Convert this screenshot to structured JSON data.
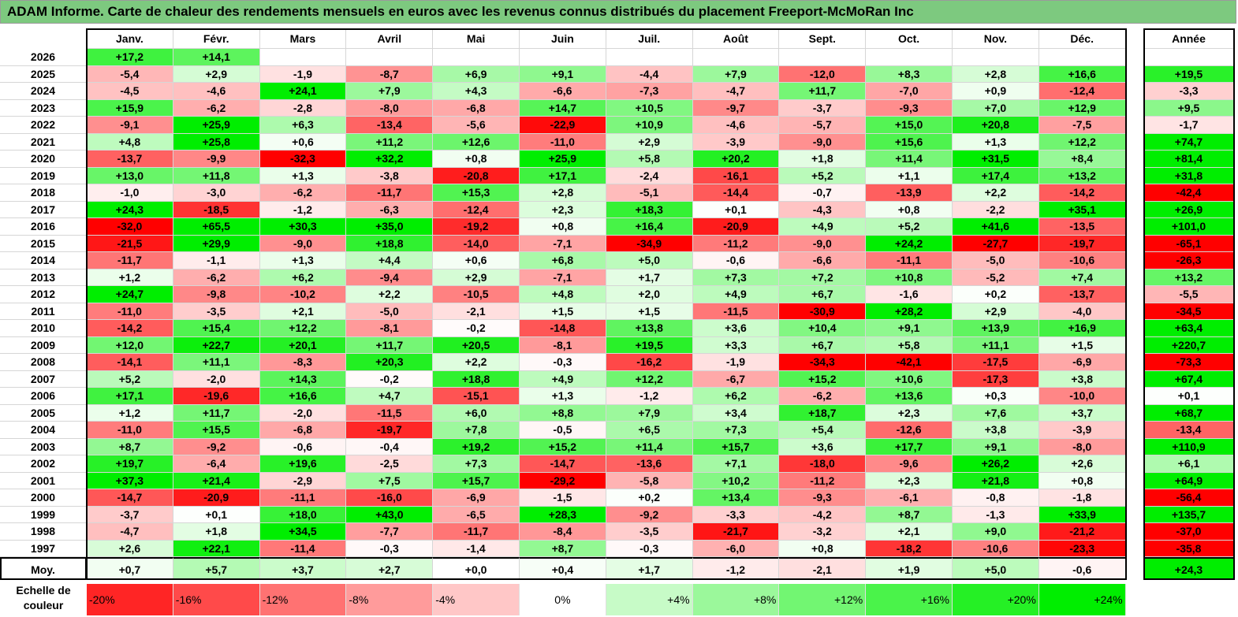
{
  "title": "ADAM Informe. Carte de chaleur des rendements mensuels en euros avec les revenus connus distribués du placement Freeport-McMoRan Inc",
  "scale_label": "Echelle de couleur",
  "chart_data": {
    "type": "heatmap",
    "title": "ADAM Informe. Carte de chaleur des rendements mensuels en euros avec les revenus connus distribués du placement Freeport-McMoRan Inc",
    "columns": [
      "Janv.",
      "Févr.",
      "Mars",
      "Avril",
      "Mai",
      "Juin",
      "Juil.",
      "Août",
      "Sept.",
      "Oct.",
      "Nov.",
      "Déc."
    ],
    "year_column": "Année",
    "rows": [
      {
        "label": "2026",
        "values": [
          "+17,2",
          "+14,1",
          "",
          "",
          "",
          "",
          "",
          "",
          "",
          "",
          "",
          ""
        ],
        "year": ""
      },
      {
        "label": "2025",
        "values": [
          "-5,4",
          "+2,9",
          "-1,9",
          "-8,7",
          "+6,9",
          "+9,1",
          "-4,4",
          "+7,9",
          "-12,0",
          "+8,3",
          "+2,8",
          "+16,6"
        ],
        "year": "+19,5"
      },
      {
        "label": "2024",
        "values": [
          "-4,5",
          "-4,6",
          "+24,1",
          "+7,9",
          "+4,3",
          "-6,6",
          "-7,3",
          "-4,7",
          "+11,7",
          "-7,0",
          "+0,9",
          "-12,4"
        ],
        "year": "-3,3"
      },
      {
        "label": "2023",
        "values": [
          "+15,9",
          "-6,2",
          "-2,8",
          "-8,0",
          "-6,8",
          "+14,7",
          "+10,5",
          "-9,7",
          "-3,7",
          "-9,3",
          "+7,0",
          "+12,9"
        ],
        "year": "+9,5"
      },
      {
        "label": "2022",
        "values": [
          "-9,1",
          "+25,9",
          "+6,3",
          "-13,4",
          "-5,6",
          "-22,9",
          "+10,9",
          "-4,6",
          "-5,7",
          "+15,0",
          "+20,8",
          "-7,5"
        ],
        "year": "-1,7"
      },
      {
        "label": "2021",
        "values": [
          "+4,8",
          "+25,8",
          "+0,6",
          "+11,2",
          "+12,6",
          "-11,0",
          "+2,9",
          "-3,9",
          "-9,0",
          "+15,6",
          "+1,3",
          "+12,2"
        ],
        "year": "+74,7"
      },
      {
        "label": "2020",
        "values": [
          "-13,7",
          "-9,9",
          "-32,3",
          "+32,2",
          "+0,8",
          "+25,9",
          "+5,8",
          "+20,2",
          "+1,8",
          "+11,4",
          "+31,5",
          "+8,4"
        ],
        "year": "+81,4"
      },
      {
        "label": "2019",
        "values": [
          "+13,0",
          "+11,8",
          "+1,3",
          "-3,8",
          "-20,8",
          "+17,1",
          "-2,4",
          "-16,1",
          "+5,2",
          "+1,1",
          "+17,4",
          "+13,2"
        ],
        "year": "+31,8"
      },
      {
        "label": "2018",
        "values": [
          "-1,0",
          "-3,0",
          "-6,2",
          "-11,7",
          "+15,3",
          "+2,8",
          "-5,1",
          "-14,4",
          "-0,7",
          "-13,9",
          "+2,2",
          "-14,2"
        ],
        "year": "-42,4"
      },
      {
        "label": "2017",
        "values": [
          "+24,3",
          "-18,5",
          "-1,2",
          "-6,3",
          "-12,4",
          "+2,3",
          "+18,3",
          "+0,1",
          "-4,3",
          "+0,8",
          "-2,2",
          "+35,1"
        ],
        "year": "+26,9"
      },
      {
        "label": "2016",
        "values": [
          "-32,0",
          "+65,5",
          "+30,3",
          "+35,0",
          "-19,2",
          "+0,8",
          "+16,4",
          "-20,9",
          "+4,9",
          "+5,2",
          "+41,6",
          "-13,5"
        ],
        "year": "+101,0"
      },
      {
        "label": "2015",
        "values": [
          "-21,5",
          "+29,9",
          "-9,0",
          "+18,8",
          "-14,0",
          "-7,1",
          "-34,9",
          "-11,2",
          "-9,0",
          "+24,2",
          "-27,7",
          "-19,7"
        ],
        "year": "-65,1"
      },
      {
        "label": "2014",
        "values": [
          "-11,7",
          "-1,1",
          "+1,3",
          "+4,4",
          "+0,6",
          "+6,8",
          "+5,0",
          "-0,6",
          "-6,6",
          "-11,1",
          "-5,0",
          "-10,6"
        ],
        "year": "-26,3"
      },
      {
        "label": "2013",
        "values": [
          "+1,2",
          "-6,2",
          "+6,2",
          "-9,4",
          "+2,9",
          "-7,1",
          "+1,7",
          "+7,3",
          "+7,2",
          "+10,8",
          "-5,2",
          "+7,4"
        ],
        "year": "+13,2"
      },
      {
        "label": "2012",
        "values": [
          "+24,7",
          "-9,8",
          "-10,2",
          "+2,2",
          "-10,5",
          "+4,8",
          "+2,0",
          "+4,9",
          "+6,7",
          "-1,6",
          "+0,2",
          "-13,7"
        ],
        "year": "-5,5"
      },
      {
        "label": "2011",
        "values": [
          "-11,0",
          "-3,5",
          "+2,1",
          "-5,0",
          "-2,1",
          "+1,5",
          "+1,5",
          "-11,5",
          "-30,9",
          "+28,2",
          "+2,9",
          "-4,0"
        ],
        "year": "-34,5"
      },
      {
        "label": "2010",
        "values": [
          "-14,2",
          "+15,4",
          "+12,2",
          "-8,1",
          "-0,2",
          "-14,8",
          "+13,8",
          "+3,6",
          "+10,4",
          "+9,1",
          "+13,9",
          "+16,9"
        ],
        "year": "+63,4"
      },
      {
        "label": "2009",
        "values": [
          "+12,0",
          "+22,7",
          "+20,1",
          "+11,7",
          "+20,5",
          "-8,1",
          "+19,5",
          "+3,3",
          "+6,7",
          "+5,8",
          "+11,1",
          "+1,5"
        ],
        "year": "+220,7"
      },
      {
        "label": "2008",
        "values": [
          "-14,1",
          "+11,1",
          "-8,3",
          "+20,3",
          "+2,2",
          "-0,3",
          "-16,2",
          "-1,9",
          "-34,3",
          "-42,1",
          "-17,5",
          "-6,9"
        ],
        "year": "-73,3"
      },
      {
        "label": "2007",
        "values": [
          "+5,2",
          "-2,0",
          "+14,3",
          "-0,2",
          "+18,8",
          "+4,9",
          "+12,2",
          "-6,7",
          "+15,2",
          "+10,6",
          "-17,3",
          "+3,8"
        ],
        "year": "+67,4"
      },
      {
        "label": "2006",
        "values": [
          "+17,1",
          "-19,6",
          "+16,6",
          "+4,7",
          "-15,1",
          "+1,3",
          "-1,2",
          "+6,2",
          "-6,2",
          "+13,6",
          "+0,3",
          "-10,0"
        ],
        "year": "+0,1"
      },
      {
        "label": "2005",
        "values": [
          "+1,2",
          "+11,7",
          "-2,0",
          "-11,5",
          "+6,0",
          "+8,8",
          "+7,9",
          "+3,4",
          "+18,7",
          "+2,3",
          "+7,6",
          "+3,7"
        ],
        "year": "+68,7"
      },
      {
        "label": "2004",
        "values": [
          "-11,0",
          "+15,5",
          "-6,8",
          "-19,7",
          "+7,8",
          "-0,5",
          "+6,5",
          "+7,3",
          "+5,4",
          "-12,6",
          "+3,8",
          "-3,9"
        ],
        "year": "-13,4"
      },
      {
        "label": "2003",
        "values": [
          "+8,7",
          "-9,2",
          "-0,6",
          "-0,4",
          "+19,2",
          "+15,2",
          "+11,4",
          "+15,7",
          "+3,6",
          "+17,7",
          "+9,1",
          "-8,0"
        ],
        "year": "+110,9"
      },
      {
        "label": "2002",
        "values": [
          "+19,7",
          "-6,4",
          "+19,6",
          "-2,5",
          "+7,3",
          "-14,7",
          "-13,6",
          "+7,1",
          "-18,0",
          "-9,6",
          "+26,2",
          "+2,6"
        ],
        "year": "+6,1"
      },
      {
        "label": "2001",
        "values": [
          "+37,3",
          "+21,4",
          "-2,9",
          "+7,5",
          "+15,7",
          "-29,2",
          "-5,8",
          "+10,2",
          "-11,2",
          "+2,3",
          "+21,8",
          "+0,8"
        ],
        "year": "+64,9"
      },
      {
        "label": "2000",
        "values": [
          "-14,7",
          "-20,9",
          "-11,1",
          "-16,0",
          "-6,9",
          "-1,5",
          "+0,2",
          "+13,4",
          "-9,3",
          "-6,1",
          "-0,8",
          "-1,8"
        ],
        "year": "-56,4"
      },
      {
        "label": "1999",
        "values": [
          "-3,7",
          "+0,1",
          "+18,0",
          "+43,0",
          "-6,5",
          "+28,3",
          "-9,2",
          "-3,3",
          "-4,2",
          "+8,7",
          "-1,3",
          "+33,9"
        ],
        "year": "+135,7"
      },
      {
        "label": "1998",
        "values": [
          "-4,7",
          "+1,8",
          "+34,5",
          "-7,7",
          "-11,7",
          "-8,4",
          "-3,5",
          "-21,7",
          "-3,2",
          "+2,1",
          "+9,0",
          "-21,2"
        ],
        "year": "-37,0"
      },
      {
        "label": "1997",
        "values": [
          "+2,6",
          "+22,1",
          "-11,4",
          "-0,3",
          "-1,4",
          "+8,7",
          "-0,3",
          "-6,0",
          "+0,8",
          "-18,2",
          "-10,6",
          "-23,3"
        ],
        "year": "-35,8"
      }
    ],
    "average": {
      "label": "Moy.",
      "values": [
        "+0,7",
        "+5,7",
        "+3,7",
        "+2,7",
        "+0,0",
        "+0,4",
        "+1,7",
        "-1,2",
        "-2,1",
        "+1,9",
        "+5,0",
        "-0,6"
      ],
      "year": "+24,3"
    },
    "color_scale": [
      "-20%",
      "-16%",
      "-12%",
      "-8%",
      "-4%",
      "0%",
      "+4%",
      "+8%",
      "+12%",
      "+16%",
      "+20%",
      "+24%"
    ],
    "colors": {
      "negative": "#ff0000",
      "neutral": "#ffffff",
      "positive": "#00ee00",
      "title_bg": "#7dc97f"
    }
  }
}
